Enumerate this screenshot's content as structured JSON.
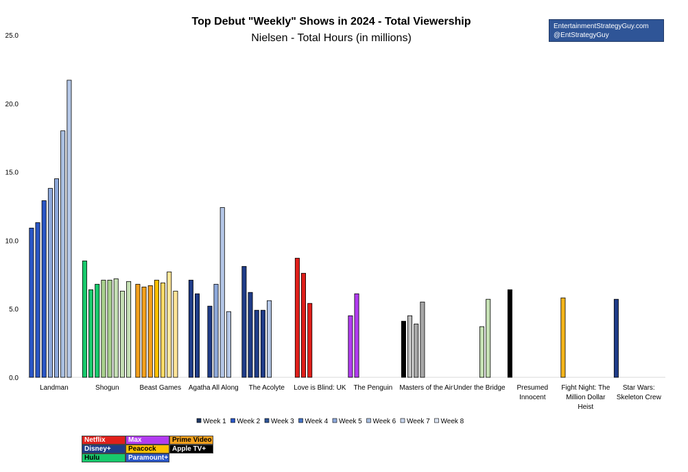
{
  "chart_data": {
    "type": "bar",
    "title": "Top Debut \"Weekly\" Shows in 2024 - Total Viewership",
    "subtitle": "Nielsen - Total Hours (in millions)",
    "ylim": [
      0,
      25
    ],
    "yticks": [
      "0.0",
      "5.0",
      "10.0",
      "15.0",
      "20.0",
      "25.0"
    ],
    "legend_position": "bottom",
    "categories": [
      "Landman",
      "Shogun",
      "Beast Games",
      "Agatha All Along",
      "The Acolyte",
      "Love is Blind: UK",
      "The Penguin",
      "Masters of the Air",
      "Under the Bridge",
      "Presumed Innocent",
      "Fight Night: The Million Dollar Heist",
      "Star Wars: Skeleton Crew"
    ],
    "category_label_lines": [
      [
        "Landman"
      ],
      [
        "Shogun"
      ],
      [
        "Beast Games"
      ],
      [
        "Agatha All Along"
      ],
      [
        "The Acolyte"
      ],
      [
        "Love is Blind: UK"
      ],
      [
        "The Penguin"
      ],
      [
        "Masters of the Air"
      ],
      [
        "Under the Bridge"
      ],
      [
        "Presumed",
        "Innocent"
      ],
      [
        "Fight Night: The",
        "Million Dollar",
        "Heist"
      ],
      [
        "Star Wars:",
        "Skeleton Crew"
      ]
    ],
    "series": [
      {
        "name": "Week 1",
        "values": [
          10.9,
          8.5,
          6.8,
          7.1,
          8.1,
          8.7,
          4.5,
          4.1,
          null,
          6.4,
          5.8,
          5.7
        ]
      },
      {
        "name": "Week 2",
        "values": [
          11.3,
          6.4,
          6.6,
          6.1,
          6.2,
          7.6,
          6.1,
          4.5,
          null,
          null,
          null,
          null
        ]
      },
      {
        "name": "Week 3",
        "values": [
          12.9,
          6.8,
          6.7,
          null,
          4.9,
          5.4,
          null,
          3.9,
          null,
          null,
          null,
          null
        ]
      },
      {
        "name": "Week 4",
        "values": [
          13.8,
          7.1,
          7.1,
          5.2,
          4.9,
          null,
          null,
          5.5,
          null,
          null,
          null,
          null
        ]
      },
      {
        "name": "Week 5",
        "values": [
          14.5,
          7.1,
          6.9,
          6.8,
          5.6,
          null,
          null,
          null,
          3.7,
          null,
          null,
          null
        ]
      },
      {
        "name": "Week 6",
        "values": [
          18.0,
          7.2,
          7.7,
          12.4,
          null,
          null,
          null,
          null,
          5.7,
          null,
          null,
          null
        ]
      },
      {
        "name": "Week 7",
        "values": [
          21.7,
          6.3,
          6.3,
          4.8,
          null,
          null,
          null,
          null,
          null,
          null,
          null,
          null
        ]
      },
      {
        "name": "Week 8",
        "values": [
          null,
          7.0,
          null,
          null,
          null,
          null,
          null,
          null,
          null,
          null,
          null,
          null
        ]
      }
    ],
    "bar_colors": [
      [
        "#2a56c6",
        "#2a56c6",
        "#2a56c6",
        "#8ea9db",
        "#8ea9db",
        "#a9bfe0",
        "#b4c7e7",
        null
      ],
      [
        "#18c96c",
        "#18c96c",
        "#18c96c",
        "#a9d18e",
        "#a9d18e",
        "#c5e0b4",
        "#c5e0b4",
        "#c5e0b4"
      ],
      [
        "#f4a11d",
        "#f4a11d",
        "#f4a11d",
        "#ffc000",
        "#ffd966",
        "#ffe699",
        "#ffe699",
        null
      ],
      [
        "#1f3c88",
        "#1f3c88",
        null,
        "#1f3c88",
        "#8ea9db",
        "#b4c7e7",
        "#b4c7e7",
        null
      ],
      [
        "#1f3c88",
        "#1f3c88",
        "#1f3c88",
        "#1f3c88",
        "#b4c7e7",
        null,
        null,
        null
      ],
      [
        "#e0201b",
        "#e0201b",
        "#e0201b",
        null,
        null,
        null,
        null,
        null
      ],
      [
        "#b23cf0",
        "#b23cf0",
        null,
        null,
        null,
        null,
        null,
        null
      ],
      [
        "#000000",
        "#c0c0c0",
        "#a6a6a6",
        "#a6a6a6",
        null,
        null,
        null,
        null
      ],
      [
        null,
        null,
        null,
        null,
        "#c5e0b4",
        "#c5e0b4",
        null,
        null
      ],
      [
        "#000000",
        null,
        null,
        null,
        null,
        null,
        null,
        null
      ],
      [
        "#f4b41a",
        null,
        null,
        null,
        null,
        null,
        null,
        null
      ],
      [
        "#1f3c88",
        null,
        null,
        null,
        null,
        null,
        null,
        null
      ]
    ],
    "legend_swatch_colors": [
      "#1f3864",
      "#2a56c6",
      "#2f5597",
      "#4472c4",
      "#8ea9db",
      "#a9bfe0",
      "#c8d6ee",
      "#dae3f3"
    ]
  },
  "credit": {
    "line1": "EntertainmentStrategyGuy.com",
    "line2": "@EntStrategyGuy"
  },
  "platform_key": [
    [
      {
        "label": "Netflix",
        "bg": "#e0201b",
        "fg": "#ffffff"
      },
      {
        "label": "Max",
        "bg": "#b23cf0",
        "fg": "#ffffff"
      },
      {
        "label": "Prime Video",
        "bg": "#f4a11d",
        "fg": "#000000"
      }
    ],
    [
      {
        "label": "Disney+",
        "bg": "#1f3c88",
        "fg": "#ffffff"
      },
      {
        "label": "Peacock",
        "bg": "#ffc000",
        "fg": "#000000"
      },
      {
        "label": "Apple TV+",
        "bg": "#000000",
        "fg": "#ffffff"
      }
    ],
    [
      {
        "label": "Hulu",
        "bg": "#18c96c",
        "fg": "#000000"
      },
      {
        "label": "Paramount+",
        "bg": "#2a56c6",
        "fg": "#ffffff"
      }
    ]
  ]
}
